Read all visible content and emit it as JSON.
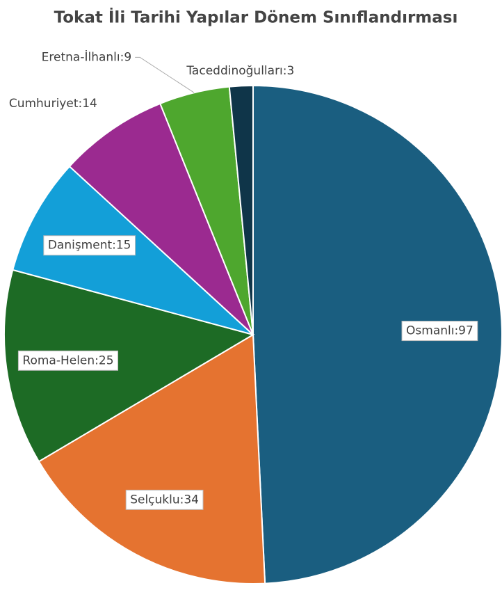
{
  "chart_data": {
    "type": "pie",
    "title": "Tokat İli Tarihi Yapılar Dönem Sınıflandırması",
    "values": [
      97,
      34,
      25,
      15,
      14,
      9,
      3
    ],
    "value_labels": [
      "Osmanlı:97",
      "Selçuklu:34",
      "Roma-Helen:25",
      "Danişment:15",
      "Cumhuriyet:14",
      "Eretna-İlhanlı:9",
      "Taceddinoğulları:3"
    ],
    "colors": [
      "#1a5e80",
      "#e57330",
      "#1d6b25",
      "#139fd8",
      "#9b2a90",
      "#4ea72e",
      "#0f3549"
    ]
  }
}
